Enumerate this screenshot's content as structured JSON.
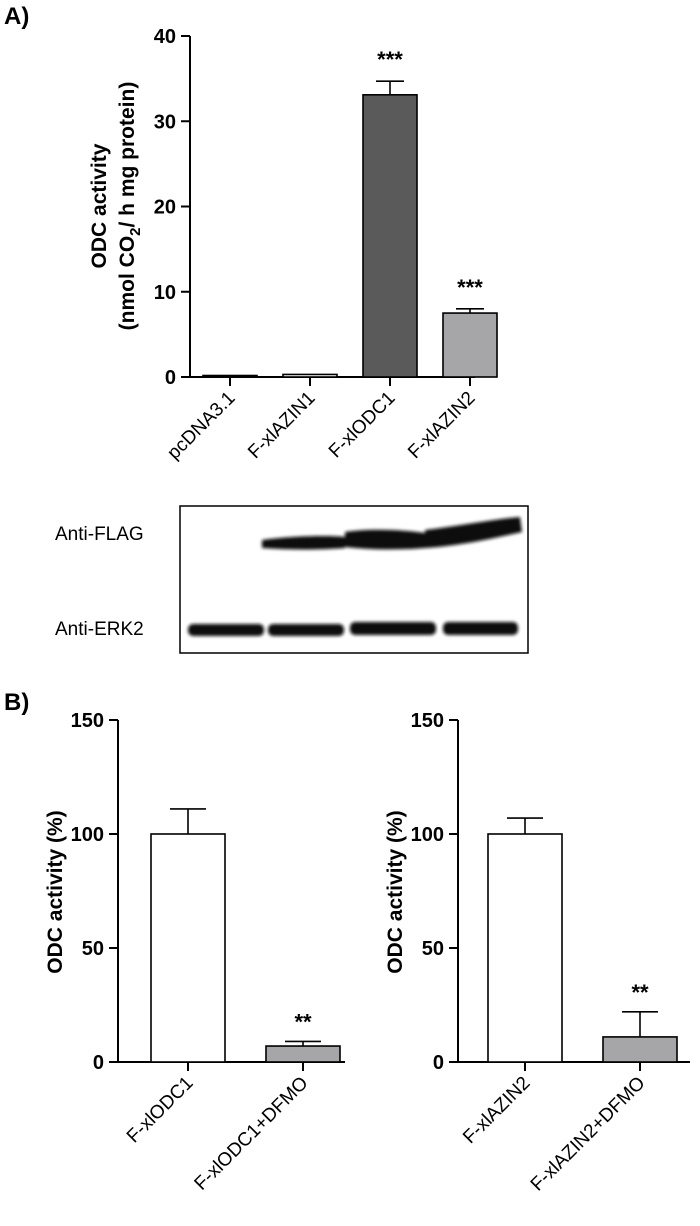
{
  "figure": {
    "panel_a_label": "A)",
    "panel_b_label": "B)"
  },
  "chart_data": [
    {
      "id": "A",
      "type": "bar",
      "categories": [
        "pcDNA3.1",
        "F-xlAZIN1",
        "F-xlODC1",
        "F-xlAZIN2"
      ],
      "values": [
        0.1,
        0.3,
        33.1,
        7.5
      ],
      "errors": [
        0,
        0,
        1.6,
        0.5
      ],
      "significance": [
        "",
        "",
        "***",
        "***"
      ],
      "bar_colors": [
        "#ffffff",
        "#ffffff",
        "#5a5a5a",
        "#a6a6a8"
      ],
      "ylabel_line1": "ODC activity",
      "ylabel_line2_pre": "(nmol CO",
      "ylabel_line2_sub": "2",
      "ylabel_line2_post": "/ h mg protein)",
      "ylim": [
        0,
        40
      ],
      "yticks": [
        0,
        10,
        20,
        30,
        40
      ]
    },
    {
      "id": "B1",
      "type": "bar",
      "categories": [
        "F-xlODC1",
        "F-xlODC1+DFMO"
      ],
      "values": [
        100,
        7
      ],
      "errors": [
        11,
        2
      ],
      "significance": [
        "",
        "**"
      ],
      "bar_colors": [
        "#ffffff",
        "#a6a6a8"
      ],
      "ylabel": "ODC activity (%)",
      "ylim": [
        0,
        150
      ],
      "yticks": [
        0,
        50,
        100,
        150
      ]
    },
    {
      "id": "B2",
      "type": "bar",
      "categories": [
        "F-xlAZIN2",
        "F-xlAZIN2+DFMO"
      ],
      "values": [
        100,
        11
      ],
      "errors": [
        7,
        11
      ],
      "significance": [
        "",
        "**"
      ],
      "bar_colors": [
        "#ffffff",
        "#a6a6a8"
      ],
      "ylabel": "ODC activity (%)",
      "ylim": [
        0,
        150
      ],
      "yticks": [
        0,
        50,
        100,
        150
      ]
    }
  ],
  "western_blot": {
    "rows": [
      {
        "label": "Anti-FLAG"
      },
      {
        "label": "Anti-ERK2"
      }
    ]
  }
}
